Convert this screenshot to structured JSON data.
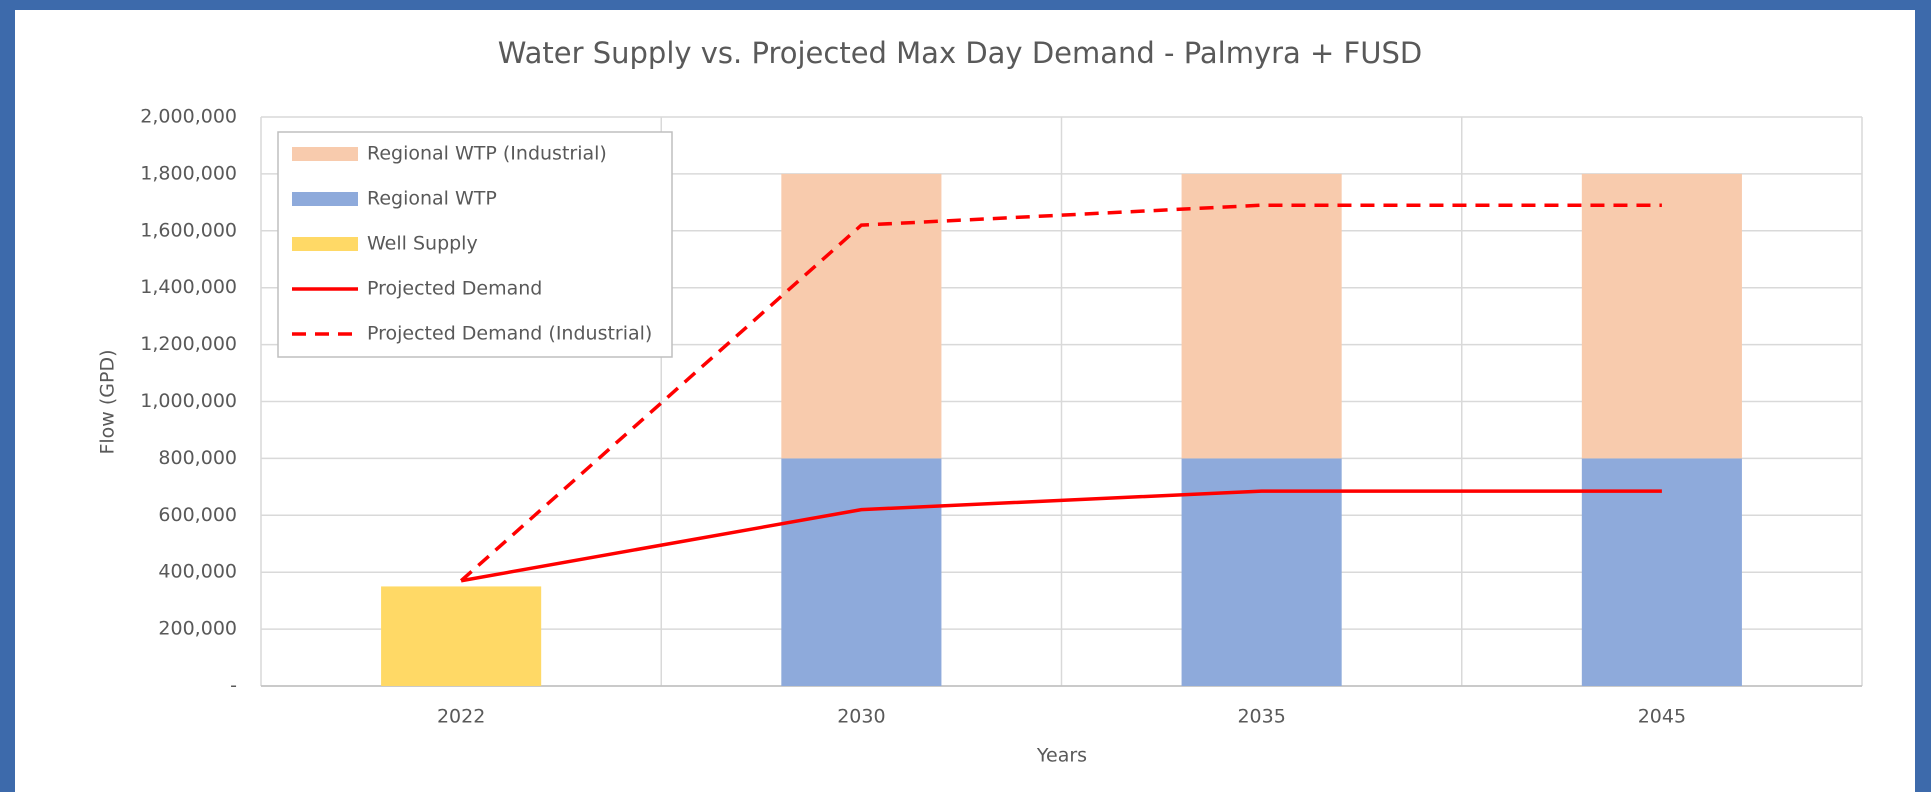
{
  "chart_data": {
    "type": "bar",
    "title": "Water Supply vs. Projected Max Day Demand - Palmyra + FUSD",
    "x_label": "Years",
    "y_label": "Flow  (GPD)",
    "categories": [
      "2022",
      "2030",
      "2035",
      "2045"
    ],
    "stacked": true,
    "series": [
      {
        "name": "Well Supply",
        "type": "bar",
        "color": "#ffd966",
        "values": [
          350000,
          0,
          0,
          0
        ]
      },
      {
        "name": "Regional WTP",
        "type": "bar",
        "color": "#8eaadb",
        "values": [
          0,
          800000,
          800000,
          800000
        ]
      },
      {
        "name": "Regional WTP (Industrial)",
        "type": "bar",
        "color": "#f8cbad",
        "values": [
          0,
          1000000,
          1000000,
          1000000
        ]
      },
      {
        "name": "Projected Demand",
        "type": "line",
        "color": "#ff0000",
        "dashed": false,
        "values": [
          370000,
          620000,
          685000,
          685000
        ]
      },
      {
        "name": "Projected Demand (Industrial)",
        "type": "line",
        "color": "#ff0000",
        "dashed": true,
        "values": [
          370000,
          1620000,
          1690000,
          1690000
        ]
      }
    ],
    "legend_order": [
      2,
      1,
      0,
      3,
      4
    ],
    "legend": "upper left",
    "ylim": [
      0,
      2000000
    ],
    "yticks": [
      {
        "value": 0,
        "label": "-"
      },
      {
        "value": 200000,
        "label": "200,000"
      },
      {
        "value": 400000,
        "label": "400,000"
      },
      {
        "value": 600000,
        "label": "600,000"
      },
      {
        "value": 800000,
        "label": "800,000"
      },
      {
        "value": 1000000,
        "label": "1,000,000"
      },
      {
        "value": 1200000,
        "label": "1,200,000"
      },
      {
        "value": 1400000,
        "label": "1,400,000"
      },
      {
        "value": 1600000,
        "label": "1,600,000"
      },
      {
        "value": 1800000,
        "label": "1,800,000"
      },
      {
        "value": 2000000,
        "label": "2,000,000"
      }
    ],
    "grid": true
  }
}
